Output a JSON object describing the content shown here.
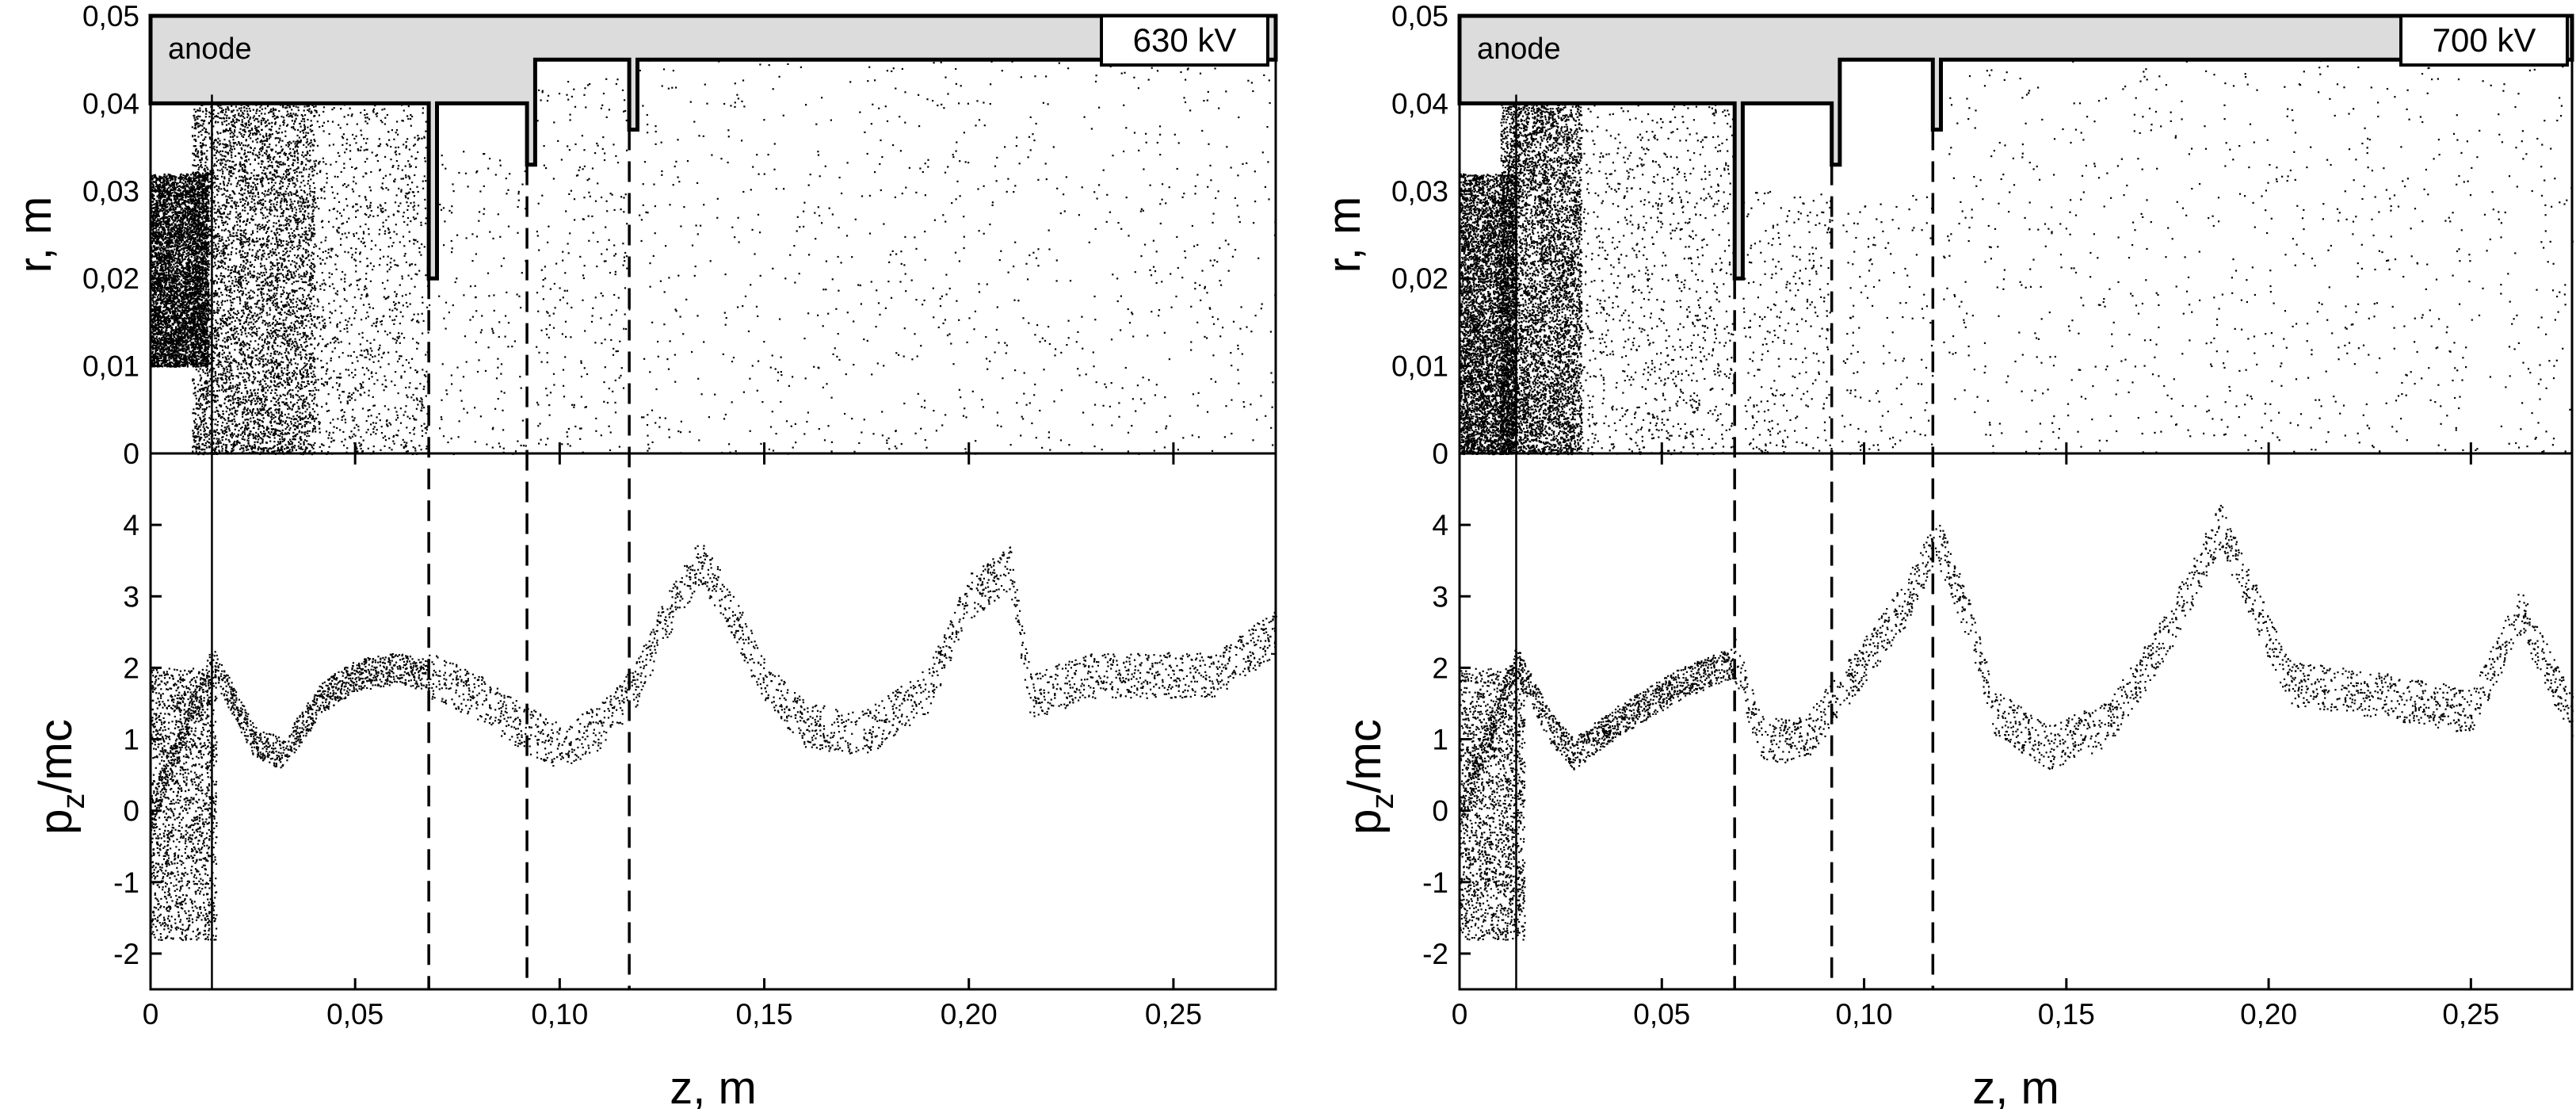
{
  "chart_data": [
    {
      "type": "scatter",
      "panel": "left",
      "voltage_label": "630 kV",
      "anode_label": "anode",
      "xlabel": "z, m",
      "top": {
        "ylabel": "r, m",
        "ylim": [
          0,
          0.05
        ],
        "yticks": [
          "0",
          "0,01",
          "0,02",
          "0,03",
          "0,04",
          "0,05"
        ],
        "yticks_values": [
          0,
          0.01,
          0.02,
          0.03,
          0.04,
          0.05
        ]
      },
      "bottom": {
        "ylabel_main": "p",
        "ylabel_sub": "z",
        "ylabel_rest": "/mc",
        "ylim": [
          -2.5,
          5
        ],
        "yticks": [
          "-2",
          "-1",
          "0",
          "1",
          "2",
          "3",
          "4"
        ],
        "yticks_values": [
          -2,
          -1,
          0,
          1,
          2,
          3,
          4
        ]
      },
      "xlim": [
        0,
        0.275
      ],
      "xticks": [
        "0",
        "0,05",
        "0,10",
        "0,15",
        "0,20",
        "0,25"
      ],
      "xticks_values": [
        0,
        0.05,
        0.1,
        0.15,
        0.2,
        0.25
      ],
      "anode_z": 0.015,
      "dashed_z": [
        0.068,
        0.092,
        0.117
      ],
      "structure_profile": [
        [
          0,
          0.04
        ],
        [
          0.068,
          0.04
        ],
        [
          0.068,
          0.02
        ],
        [
          0.07,
          0.02
        ],
        [
          0.07,
          0.04
        ],
        [
          0.092,
          0.04
        ],
        [
          0.092,
          0.033
        ],
        [
          0.094,
          0.033
        ],
        [
          0.094,
          0.045
        ],
        [
          0.117,
          0.045
        ],
        [
          0.117,
          0.037
        ],
        [
          0.119,
          0.037
        ],
        [
          0.119,
          0.045
        ],
        [
          0.275,
          0.045
        ]
      ],
      "rz_clusters": [
        {
          "z": [
            0,
            0.014
          ],
          "r": [
            0.01,
            0.032
          ],
          "density": 5200
        },
        {
          "z": [
            0.01,
            0.04
          ],
          "r": [
            0.0,
            0.04
          ],
          "density": 5200
        },
        {
          "z": [
            0.04,
            0.068
          ],
          "r": [
            0.0,
            0.04
          ],
          "density": 1100
        },
        {
          "z": [
            0.07,
            0.092
          ],
          "r": [
            0.0,
            0.035
          ],
          "density": 160
        },
        {
          "z": [
            0.094,
            0.117
          ],
          "r": [
            0.0,
            0.043
          ],
          "density": 260
        },
        {
          "z": [
            0.119,
            0.275
          ],
          "r": [
            0.0,
            0.05
          ],
          "density": 950
        }
      ],
      "pz_curve": [
        [
          0,
          0.0
        ],
        [
          0.015,
          2.1
        ],
        [
          0.025,
          1.0
        ],
        [
          0.032,
          0.8
        ],
        [
          0.042,
          1.6
        ],
        [
          0.05,
          1.9
        ],
        [
          0.06,
          2.0
        ],
        [
          0.068,
          1.9
        ],
        [
          0.08,
          1.6
        ],
        [
          0.09,
          1.2
        ],
        [
          0.1,
          0.9
        ],
        [
          0.11,
          1.2
        ],
        [
          0.118,
          1.7
        ],
        [
          0.125,
          2.6
        ],
        [
          0.134,
          3.5
        ],
        [
          0.142,
          2.8
        ],
        [
          0.15,
          1.8
        ],
        [
          0.16,
          1.2
        ],
        [
          0.175,
          1.1
        ],
        [
          0.19,
          1.7
        ],
        [
          0.2,
          3.0
        ],
        [
          0.21,
          3.4
        ],
        [
          0.215,
          1.6
        ],
        [
          0.23,
          1.9
        ],
        [
          0.26,
          1.9
        ],
        [
          0.275,
          2.5
        ]
      ],
      "pz_spread": [
        {
          "z": [
            0.0,
            0.016
          ],
          "p": [
            -1.8,
            2.0
          ],
          "density": 1600
        }
      ]
    },
    {
      "type": "scatter",
      "panel": "right",
      "voltage_label": "700 kV",
      "anode_label": "anode",
      "xlabel": "z, m",
      "top": {
        "ylabel": "r, m",
        "ylim": [
          0,
          0.05
        ],
        "yticks": [
          "0",
          "0,01",
          "0,02",
          "0,03",
          "0,04",
          "0,05"
        ],
        "yticks_values": [
          0,
          0.01,
          0.02,
          0.03,
          0.04,
          0.05
        ]
      },
      "bottom": {
        "ylabel_main": "p",
        "ylabel_sub": "z",
        "ylabel_rest": "/mc",
        "ylim": [
          -2.5,
          5
        ],
        "yticks": [
          "-2",
          "-1",
          "0",
          "1",
          "2",
          "3",
          "4"
        ],
        "yticks_values": [
          -2,
          -1,
          0,
          1,
          2,
          3,
          4
        ]
      },
      "xlim": [
        0,
        0.275
      ],
      "xticks": [
        "0",
        "0,05",
        "0,10",
        "0,15",
        "0,20",
        "0,25"
      ],
      "xticks_values": [
        0,
        0.05,
        0.1,
        0.15,
        0.2,
        0.25
      ],
      "anode_z": 0.014,
      "dashed_z": [
        0.068,
        0.092,
        0.117
      ],
      "structure_profile": [
        [
          0,
          0.04
        ],
        [
          0.068,
          0.04
        ],
        [
          0.068,
          0.02
        ],
        [
          0.07,
          0.02
        ],
        [
          0.07,
          0.04
        ],
        [
          0.092,
          0.04
        ],
        [
          0.092,
          0.033
        ],
        [
          0.094,
          0.033
        ],
        [
          0.094,
          0.045
        ],
        [
          0.117,
          0.045
        ],
        [
          0.117,
          0.037
        ],
        [
          0.119,
          0.037
        ],
        [
          0.119,
          0.045
        ],
        [
          0.275,
          0.045
        ]
      ],
      "rz_clusters": [
        {
          "z": [
            0,
            0.014
          ],
          "r": [
            0.0,
            0.032
          ],
          "density": 5400
        },
        {
          "z": [
            0.01,
            0.03
          ],
          "r": [
            0.0,
            0.04
          ],
          "density": 5600
        },
        {
          "z": [
            0.03,
            0.068
          ],
          "r": [
            0.0,
            0.04
          ],
          "density": 1000
        },
        {
          "z": [
            0.07,
            0.092
          ],
          "r": [
            0.0,
            0.03
          ],
          "density": 320
        },
        {
          "z": [
            0.094,
            0.117
          ],
          "r": [
            0.0,
            0.03
          ],
          "density": 140
        },
        {
          "z": [
            0.119,
            0.275
          ],
          "r": [
            0.0,
            0.05
          ],
          "density": 950
        }
      ],
      "pz_curve": [
        [
          0,
          0.0
        ],
        [
          0.014,
          2.1
        ],
        [
          0.022,
          1.2
        ],
        [
          0.028,
          0.8
        ],
        [
          0.04,
          1.3
        ],
        [
          0.055,
          1.8
        ],
        [
          0.068,
          2.1
        ],
        [
          0.075,
          1.0
        ],
        [
          0.085,
          1.0
        ],
        [
          0.092,
          1.5
        ],
        [
          0.1,
          2.1
        ],
        [
          0.11,
          2.9
        ],
        [
          0.118,
          3.8
        ],
        [
          0.125,
          2.8
        ],
        [
          0.132,
          1.4
        ],
        [
          0.145,
          0.9
        ],
        [
          0.16,
          1.2
        ],
        [
          0.175,
          2.5
        ],
        [
          0.188,
          4.0
        ],
        [
          0.194,
          3.2
        ],
        [
          0.205,
          1.8
        ],
        [
          0.23,
          1.6
        ],
        [
          0.25,
          1.4
        ],
        [
          0.262,
          2.8
        ],
        [
          0.275,
          1.3
        ]
      ],
      "pz_spread": [
        {
          "z": [
            0.0,
            0.016
          ],
          "p": [
            -1.8,
            2.0
          ],
          "density": 1700
        }
      ]
    }
  ]
}
